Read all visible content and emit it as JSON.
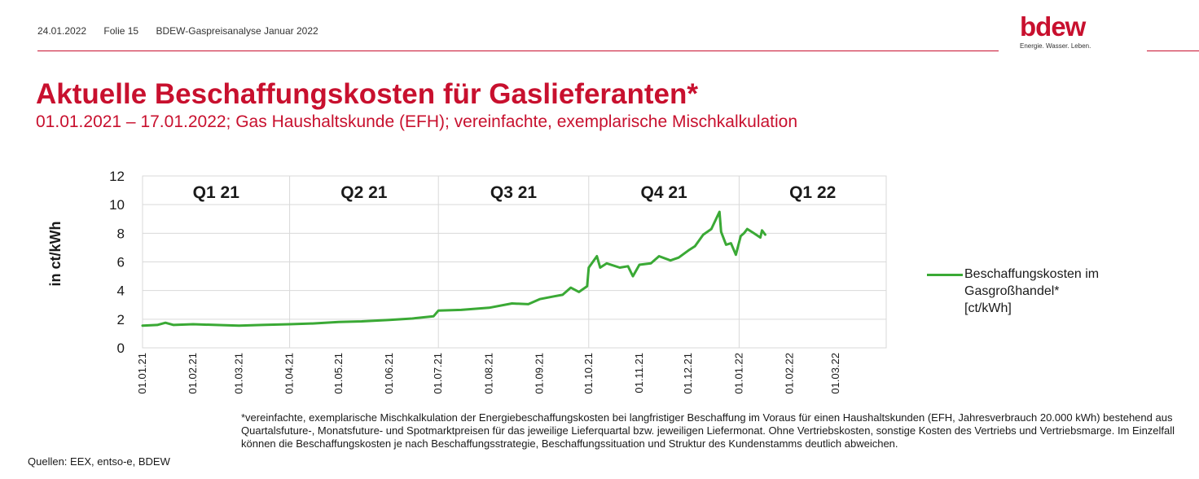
{
  "header": {
    "date": "24.01.2022",
    "slide": "Folie 15",
    "doc_title": "BDEW-Gaspreisanalyse Januar 2022",
    "logo_text": "bdew",
    "logo_tagline": "Energie. Wasser. Leben."
  },
  "title": "Aktuelle Beschaffungskosten für Gaslieferanten*",
  "subtitle": "01.01.2021 – 17.01.2022; Gas Haushaltskunde (EFH); vereinfachte, exemplarische Mischkalkulation",
  "legend_label_lines": [
    "Beschaffungskosten im",
    "Gasgroßhandel*",
    "[ct/kWh]"
  ],
  "footnote": "*vereinfachte, exemplarische Mischkalkulation der Energiebeschaffungskosten bei langfristiger Beschaffung im Voraus für einen Haushaltskunden (EFH, Jahresverbrauch 20.000 kWh) bestehend aus Quartalsfuture-, Monatsfuture- und Spotmarktpreisen für das jeweilige Lieferquartal bzw. jeweiligen Liefermonat. Ohne Vertriebskosten, sonstige Kosten des Vertriebs und Vertriebsmarge. Im Einzelfall können die Beschaffungskosten je nach Beschaffungsstrategie, Beschaffungssituation und Struktur des Kundenstamms deutlich abweichen.",
  "sources": "Quellen: EEX, entso-e, BDEW",
  "colors": {
    "accent": "#c8102e",
    "series": "#3aa935",
    "grid": "#d9d9d9"
  },
  "chart_data": {
    "type": "line",
    "ylabel": "in ct/kWh",
    "xlabel": "",
    "ylim": [
      0,
      12
    ],
    "yticks": [
      0,
      2,
      4,
      6,
      8,
      10,
      12
    ],
    "xlim": [
      "01.01.21",
      "01.04.22"
    ],
    "x_tick_labels": [
      "01.01.21",
      "01.02.21",
      "01.03.21",
      "01.04.21",
      "01.05.21",
      "01.06.21",
      "01.07.21",
      "01.08.21",
      "01.09.21",
      "01.10.21",
      "01.11.21",
      "01.12.21",
      "01.01.22",
      "01.02.22",
      "01.03.22"
    ],
    "quarter_labels": [
      "Q1 21",
      "Q2 21",
      "Q3 21",
      "Q4 21",
      "Q1 22"
    ],
    "grid": true,
    "legend_position": "right",
    "series": [
      {
        "name": "Beschaffungskosten im Gasgroßhandel* [ct/kWh]",
        "x": [
          "01.01.21",
          "10.01.21",
          "15.01.21",
          "20.01.21",
          "01.02.21",
          "15.02.21",
          "01.03.21",
          "15.03.21",
          "01.04.21",
          "15.04.21",
          "01.05.21",
          "15.05.21",
          "01.06.21",
          "15.06.21",
          "28.06.21",
          "01.07.21",
          "15.07.21",
          "01.08.21",
          "15.08.21",
          "25.08.21",
          "01.09.21",
          "10.09.21",
          "15.09.21",
          "20.09.21",
          "25.09.21",
          "30.09.21",
          "01.10.21",
          "06.10.21",
          "08.10.21",
          "12.10.21",
          "20.10.21",
          "25.10.21",
          "28.10.21",
          "01.11.21",
          "08.11.21",
          "13.11.21",
          "20.11.21",
          "25.11.21",
          "01.12.21",
          "05.12.21",
          "10.12.21",
          "15.12.21",
          "20.12.21",
          "21.12.21",
          "24.12.21",
          "27.12.21",
          "30.12.21",
          "02.01.22",
          "04.01.22",
          "06.01.22",
          "10.01.22",
          "14.01.22",
          "15.01.22",
          "17.01.22"
        ],
        "y": [
          1.55,
          1.6,
          1.75,
          1.6,
          1.65,
          1.6,
          1.55,
          1.6,
          1.65,
          1.7,
          1.8,
          1.85,
          1.95,
          2.05,
          2.2,
          2.6,
          2.65,
          2.8,
          3.1,
          3.05,
          3.4,
          3.6,
          3.7,
          4.2,
          3.9,
          4.3,
          5.6,
          6.4,
          5.6,
          5.9,
          5.6,
          5.7,
          5.0,
          5.8,
          5.9,
          6.4,
          6.1,
          6.3,
          6.8,
          7.1,
          7.9,
          8.3,
          9.5,
          8.1,
          7.2,
          7.3,
          6.5,
          7.8,
          8.0,
          8.3,
          8.0,
          7.7,
          8.2,
          7.9
        ]
      }
    ]
  }
}
